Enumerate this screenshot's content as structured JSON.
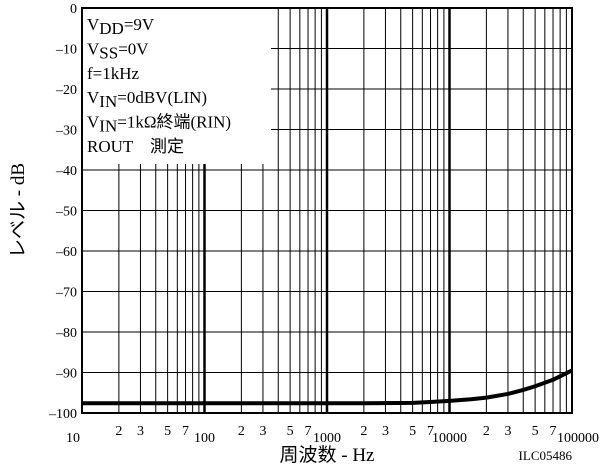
{
  "chart_data": {
    "type": "line",
    "title": "",
    "xlabel": "周波数 - Hz",
    "ylabel": "レベル - dB",
    "x_scale": "log",
    "xlim": [
      10,
      100000
    ],
    "ylim": [
      -100,
      0
    ],
    "grid": true,
    "y_ticks": [
      {
        "value": 0,
        "label": "0"
      },
      {
        "value": -10,
        "label": "–10"
      },
      {
        "value": -20,
        "label": "–20"
      },
      {
        "value": -30,
        "label": "–30"
      },
      {
        "value": -40,
        "label": "–40"
      },
      {
        "value": -50,
        "label": "–50"
      },
      {
        "value": -60,
        "label": "–60"
      },
      {
        "value": -70,
        "label": "–70"
      },
      {
        "value": -80,
        "label": "–80"
      },
      {
        "value": -90,
        "label": "–90"
      },
      {
        "value": -100,
        "label": "–100"
      }
    ],
    "x_decade_ticks": [
      {
        "value": 10,
        "label": "10"
      },
      {
        "value": 100,
        "label": "100"
      },
      {
        "value": 1000,
        "label": "1000"
      },
      {
        "value": 10000,
        "label": "10000"
      },
      {
        "value": 100000,
        "label": "100000"
      }
    ],
    "x_minor_labels": [
      "2",
      "3",
      "5",
      "7"
    ],
    "series": [
      {
        "x": [
          10,
          20,
          50,
          100,
          200,
          500,
          1000,
          2000,
          5000,
          7000,
          10000,
          15000,
          20000,
          30000,
          40000,
          50000,
          70000,
          100000
        ],
        "y": [
          -97.6,
          -97.6,
          -97.6,
          -97.6,
          -97.6,
          -97.6,
          -97.6,
          -97.6,
          -97.5,
          -97.3,
          -97.0,
          -96.6,
          -96.2,
          -95.3,
          -94.3,
          -93.4,
          -91.8,
          -89.5
        ]
      }
    ],
    "annotations": [
      {
        "parts": [
          {
            "t": "V"
          },
          {
            "t": "DD",
            "sub": true
          },
          {
            "t": "=9V"
          }
        ]
      },
      {
        "parts": [
          {
            "t": "V"
          },
          {
            "t": "SS",
            "sub": true
          },
          {
            "t": "=0V"
          }
        ]
      },
      {
        "parts": [
          {
            "t": "f=1kHz"
          }
        ]
      },
      {
        "parts": [
          {
            "t": "V"
          },
          {
            "t": "IN",
            "sub": true
          },
          {
            "t": "=0dBV(LIN)"
          }
        ]
      },
      {
        "parts": [
          {
            "t": "V"
          },
          {
            "t": "IN",
            "sub": true
          },
          {
            "t": "=1kΩ終端(RIN)"
          }
        ]
      },
      {
        "parts": [
          {
            "t": "ROUT　測定"
          }
        ]
      }
    ],
    "figure_id": "ILC05486"
  }
}
